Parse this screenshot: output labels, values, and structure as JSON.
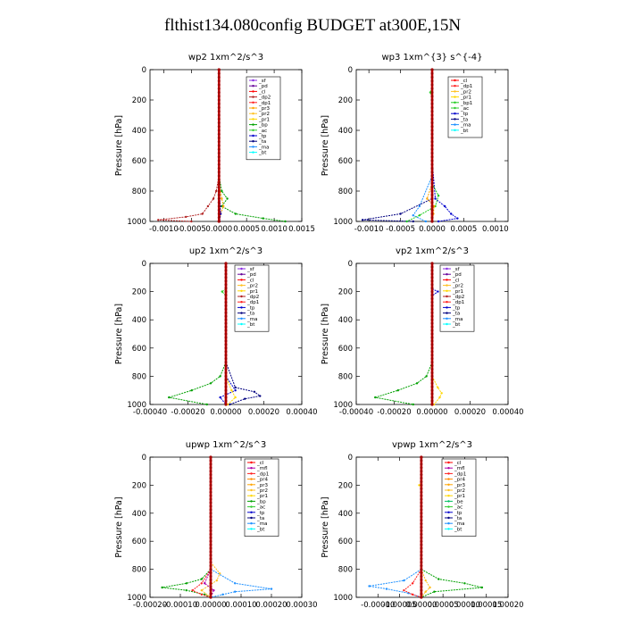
{
  "figure_title": "flthist134.080config  BUDGET at300E,15N",
  "colors": {
    "bt": "#00ffff",
    "sf": "#8a2be2",
    "pd": "#660099",
    "cl": "#ff0000",
    "dp2": "#b22222",
    "dp1": "#ff2020",
    "pr3": "#ffa500",
    "pr2": "#ffc020",
    "pr1": "#ffd700",
    "bp": "#00a000",
    "bp1": "#22cc22",
    "ac": "#32cd32",
    "tp": "#0000cd",
    "ta": "#000080",
    "ma": "#1e90ff",
    "mfl": "#aa00aa",
    "pr4": "#ff8c00",
    "be": "#00c060",
    "res": "#c00000"
  },
  "chart_data": [
    {
      "type": "line",
      "title": "wp2   1xm^2/s^3",
      "ylabel": "Pressure  [hPa]",
      "xlim": [
        -0.00125,
        0.0015
      ],
      "ylim": [
        1000,
        0
      ],
      "xticks": [
        -0.001,
        -0.0005,
        0,
        0.0005,
        0.001,
        0.0015
      ],
      "xtick_labels": [
        "-0.0010",
        "-0.0005",
        "0.0000",
        "0.0005",
        "0.0010",
        "0.0015"
      ],
      "yticks": [
        0,
        200,
        400,
        600,
        800,
        1000
      ],
      "legend": [
        "_sf",
        "_pd",
        "_cl",
        "_dp2",
        "_dp1",
        "_pr3",
        "_pr2",
        "_pr1",
        "_bp",
        "_ac",
        "_tp",
        "_ta",
        "_ma",
        "_bt"
      ],
      "legend_colors": [
        "sf",
        "pd",
        "cl",
        "dp2",
        "dp1",
        "pr3",
        "pr2",
        "pr1",
        "bp",
        "ac",
        "tp",
        "ta",
        "ma",
        "bt"
      ],
      "series": [
        {
          "color": "bp",
          "y": [
            700,
            800,
            850,
            900,
            950,
            980,
            1000
          ],
          "x": [
            0,
            5e-05,
            0.00015,
            5e-05,
            0.0003,
            0.0008,
            0.0012
          ]
        },
        {
          "color": "dp2",
          "y": [
            700,
            800,
            850,
            900,
            950,
            970,
            990,
            1000
          ],
          "x": [
            0,
            -5e-05,
            -0.0001,
            -0.0002,
            -0.0003,
            -0.0006,
            -0.0011,
            -0.0005
          ]
        },
        {
          "color": "pr3",
          "y": [
            750,
            850,
            900,
            950,
            1000
          ],
          "x": [
            0,
            5e-05,
            8e-05,
            3e-05,
            0
          ]
        },
        {
          "color": "tp",
          "y": [
            700,
            900,
            950,
            1000
          ],
          "x": [
            0,
            2e-05,
            3e-05,
            1e-05
          ]
        },
        {
          "color": "res",
          "y": [
            0,
            1000
          ],
          "x": [
            0,
            0
          ]
        }
      ]
    },
    {
      "type": "line",
      "title": "wp3   1xm^{3} s^{-4}",
      "ylabel": "Pressure  [hPa]",
      "xlim": [
        -0.0012,
        0.0012
      ],
      "ylim": [
        1000,
        0
      ],
      "xticks": [
        -0.001,
        -0.0005,
        0,
        0.0005,
        0.001
      ],
      "xtick_labels": [
        "-0.0010",
        "-0.0005",
        "0.0000",
        "0.0005",
        "0.0010"
      ],
      "yticks": [
        0,
        200,
        400,
        600,
        800,
        1000
      ],
      "legend": [
        "_cl",
        "_dp1",
        "_pr2",
        "_pr1",
        "_bp1",
        "_ac",
        "_tp",
        "_ta",
        "_ma",
        "_bt"
      ],
      "legend_colors": [
        "cl",
        "dp1",
        "pr2",
        "pr1",
        "bp1",
        "ac",
        "tp",
        "ta",
        "ma",
        "bt"
      ],
      "series": [
        {
          "color": "tp",
          "y": [
            600,
            850,
            900,
            950,
            980,
            1000
          ],
          "x": [
            0,
            5e-05,
            0.0002,
            0.0003,
            0.0004,
            0.0001
          ]
        },
        {
          "color": "ma",
          "y": [
            700,
            900,
            960,
            1000
          ],
          "x": [
            0,
            -0.0002,
            -0.0003,
            -0.0001
          ]
        },
        {
          "color": "ta",
          "y": [
            850,
            950,
            990,
            1000
          ],
          "x": [
            0,
            -0.0005,
            -0.0011,
            -0.0003
          ]
        },
        {
          "color": "bp1",
          "y": [
            750,
            830,
            900,
            960,
            1000
          ],
          "x": [
            0,
            0.0001,
            5e-05,
            -0.0002,
            -0.0004
          ]
        },
        {
          "color": "pr3",
          "y": [
            750,
            850,
            900,
            950,
            1000
          ],
          "x": [
            0,
            -8e-05,
            3e-05,
            2e-05,
            0
          ]
        },
        {
          "color": "ac",
          "y": [
            120,
            150,
            180
          ],
          "x": [
            0,
            -3e-05,
            0
          ]
        },
        {
          "color": "res",
          "y": [
            0,
            1000
          ],
          "x": [
            0,
            0
          ]
        }
      ]
    },
    {
      "type": "line",
      "title": "up2   1xm^2/s^3",
      "ylabel": "Pressure  [hPa]",
      "xlim": [
        -0.0004,
        0.0004
      ],
      "ylim": [
        1000,
        0
      ],
      "xticks": [
        -0.0004,
        -0.0002,
        0,
        0.0002,
        0.0004
      ],
      "xtick_labels": [
        "-0.00040",
        "-0.00020",
        "0.00000",
        "0.00020",
        "0.00040"
      ],
      "yticks": [
        0,
        200,
        400,
        600,
        800,
        1000
      ],
      "legend": [
        "_sf",
        "_pd",
        "_cl",
        "_pr2",
        "_pr1",
        "_dp2",
        "_dp1",
        "_tp",
        "_ta",
        "_ma",
        "_bt"
      ],
      "legend_colors": [
        "sf",
        "pd",
        "cl",
        "pr2",
        "pr1",
        "dp2",
        "dp1",
        "tp",
        "ta",
        "ma",
        "bt"
      ],
      "series": [
        {
          "color": "bp",
          "y": [
            700,
            800,
            850,
            900,
            950,
            1000
          ],
          "x": [
            0,
            -3e-05,
            -8e-05,
            -0.00018,
            -0.0003,
            -0.0001
          ]
        },
        {
          "color": "ta",
          "y": [
            700,
            880,
            910,
            940,
            960,
            1000
          ],
          "x": [
            0,
            5e-05,
            0.00015,
            0.00018,
            0.0001,
            2e-05
          ]
        },
        {
          "color": "tp",
          "y": [
            800,
            900,
            950,
            1000
          ],
          "x": [
            0,
            5e-05,
            -3e-05,
            0
          ]
        },
        {
          "color": "pr1",
          "y": [
            800,
            900,
            950,
            1000
          ],
          "x": [
            0,
            3e-05,
            5e-05,
            1e-05
          ]
        },
        {
          "color": "ac",
          "y": [
            180,
            200,
            230
          ],
          "x": [
            0,
            -2e-05,
            0
          ]
        },
        {
          "color": "res",
          "y": [
            0,
            1000
          ],
          "x": [
            0,
            0
          ]
        }
      ]
    },
    {
      "type": "line",
      "title": "vp2   1xm^2/s^3",
      "ylabel": "Pressure  [hPa]",
      "xlim": [
        -0.0004,
        0.0004
      ],
      "ylim": [
        1000,
        0
      ],
      "xticks": [
        -0.0004,
        -0.0002,
        0,
        0.0002,
        0.0004
      ],
      "xtick_labels": [
        "-0.00040",
        "-0.00020",
        "0.00000",
        "0.00020",
        "0.00040"
      ],
      "yticks": [
        0,
        200,
        400,
        600,
        800,
        1000
      ],
      "legend": [
        "_sf",
        "_pd",
        "_cl",
        "_pr2",
        "_pr1",
        "_dp2",
        "_dp1",
        "_tp",
        "_ta",
        "_ma",
        "_bt"
      ],
      "legend_colors": [
        "sf",
        "pd",
        "cl",
        "pr2",
        "pr1",
        "dp2",
        "dp1",
        "tp",
        "ta",
        "ma",
        "bt"
      ],
      "series": [
        {
          "color": "bp",
          "y": [
            700,
            800,
            850,
            900,
            950,
            1000
          ],
          "x": [
            0,
            -3e-05,
            -8e-05,
            -0.00018,
            -0.0003,
            -0.0001
          ]
        },
        {
          "color": "pr1",
          "y": [
            800,
            880,
            920,
            950,
            1000
          ],
          "x": [
            0,
            3e-05,
            5e-05,
            4e-05,
            1e-05
          ]
        },
        {
          "color": "tp",
          "y": [
            180,
            200,
            230
          ],
          "x": [
            0,
            3e-05,
            0
          ]
        },
        {
          "color": "res",
          "y": [
            0,
            1000
          ],
          "x": [
            0,
            0
          ]
        }
      ]
    },
    {
      "type": "line",
      "title": "upwp   1xm^2/s^3",
      "ylabel": "Pressure  [hPa]",
      "xlim": [
        -0.0002,
        0.0003
      ],
      "ylim": [
        1000,
        0
      ],
      "xticks": [
        -0.0002,
        -0.0001,
        0,
        0.0001,
        0.0002,
        0.0003
      ],
      "xtick_labels": [
        "-0.00020",
        "-0.00010",
        "0.00000",
        "0.00010",
        "0.00020",
        "0.00030"
      ],
      "yticks": [
        0,
        200,
        400,
        600,
        800,
        1000
      ],
      "legend": [
        "_cl",
        "_mfl",
        "_dp1",
        "_pr4",
        "_pr3",
        "_pr2",
        "_pr1",
        "_bp",
        "_ac",
        "_tp",
        "_ta",
        "_ma",
        "_bt"
      ],
      "legend_colors": [
        "cl",
        "mfl",
        "dp1",
        "pr4",
        "pr3",
        "pr2",
        "pr1",
        "bp",
        "ac",
        "tp",
        "ta",
        "ma",
        "bt"
      ],
      "series": [
        {
          "color": "bp",
          "y": [
            800,
            870,
            900,
            930,
            950,
            980,
            1000
          ],
          "x": [
            0,
            -3e-05,
            -8e-05,
            -0.00016,
            -8e-05,
            -2e-05,
            0
          ]
        },
        {
          "color": "ma",
          "y": [
            800,
            900,
            940,
            960,
            980,
            1000
          ],
          "x": [
            0,
            8e-05,
            0.0002,
            8e-05,
            4e-05,
            0
          ]
        },
        {
          "color": "dp1",
          "y": [
            800,
            900,
            950,
            980,
            1000
          ],
          "x": [
            0,
            -3e-05,
            -6e-05,
            -3e-05,
            0
          ]
        },
        {
          "color": "pr2",
          "y": [
            750,
            830,
            880,
            950,
            1000
          ],
          "x": [
            0,
            3e-05,
            2e-05,
            -3e-05,
            0
          ]
        },
        {
          "color": "mfl",
          "y": [
            800,
            900,
            950,
            1000
          ],
          "x": [
            0,
            -2e-05,
            1e-05,
            0
          ]
        },
        {
          "color": "res",
          "y": [
            0,
            1000
          ],
          "x": [
            0,
            0
          ]
        }
      ]
    },
    {
      "type": "line",
      "title": "vpwp   1xm^2/s^3",
      "ylabel": "Pressure  [hPa]",
      "xlim": [
        -0.00015,
        0.0002
      ],
      "ylim": [
        1000,
        0
      ],
      "xticks": [
        -0.0001,
        -5e-05,
        0,
        5e-05,
        0.0001,
        0.00015,
        0.0002
      ],
      "xtick_labels": [
        "-0.00010",
        "-0.00005",
        "0.00000",
        "0.00005",
        "0.00010",
        "0.00015",
        "0.00020"
      ],
      "yticks": [
        0,
        200,
        400,
        600,
        800,
        1000
      ],
      "legend": [
        "_cl",
        "_mfl",
        "_dp1",
        "_pr4",
        "_pr3",
        "_pr2",
        "_pr1",
        "_be",
        "_ac",
        "_tp",
        "_ta",
        "_ma",
        "_bt"
      ],
      "legend_colors": [
        "cl",
        "mfl",
        "dp1",
        "pr4",
        "pr3",
        "pr2",
        "pr1",
        "be",
        "ac",
        "tp",
        "ta",
        "ma",
        "bt"
      ],
      "series": [
        {
          "color": "bp",
          "y": [
            800,
            870,
            900,
            930,
            960,
            1000
          ],
          "x": [
            0,
            4e-05,
            0.0001,
            0.00014,
            3e-05,
            0
          ]
        },
        {
          "color": "ma",
          "y": [
            800,
            880,
            920,
            940,
            970,
            1000
          ],
          "x": [
            0,
            -4e-05,
            -0.00012,
            -8e-05,
            -3e-05,
            0
          ]
        },
        {
          "color": "dp1",
          "y": [
            800,
            900,
            950,
            980,
            1000
          ],
          "x": [
            0,
            -2e-05,
            -4e-05,
            -2e-05,
            0
          ]
        },
        {
          "color": "pr2",
          "y": [
            800,
            880,
            930,
            960,
            1000
          ],
          "x": [
            0,
            1e-05,
            2e-05,
            1e-05,
            0
          ]
        },
        {
          "color": "pr1",
          "y": [
            180,
            200,
            220
          ],
          "x": [
            0,
            -5e-06,
            0
          ]
        },
        {
          "color": "res",
          "y": [
            0,
            1000
          ],
          "x": [
            0,
            0
          ]
        }
      ]
    }
  ]
}
